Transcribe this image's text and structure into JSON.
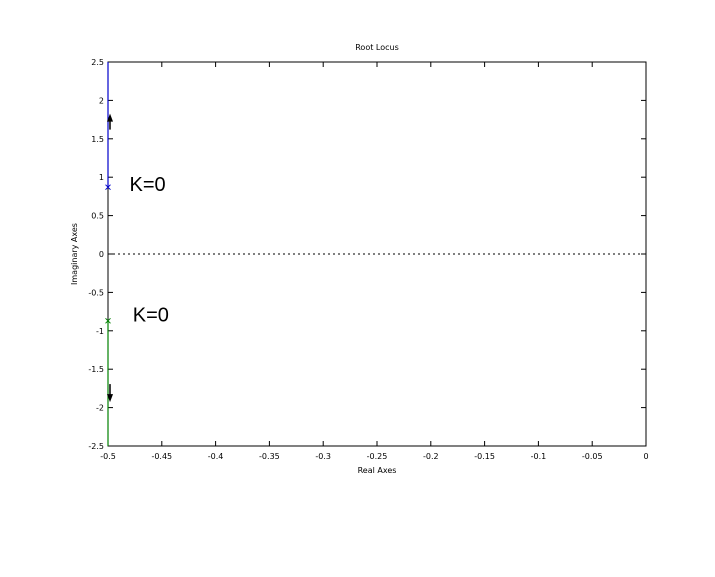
{
  "chart_data": {
    "type": "line",
    "title": "Root Locus",
    "xlabel": "Real Axes",
    "ylabel": "Imaginary Axes",
    "xlim": [
      -0.5,
      0
    ],
    "ylim": [
      -2.5,
      2.5
    ],
    "x_ticks": [
      -0.5,
      -0.45,
      -0.4,
      -0.35,
      -0.3,
      -0.25,
      -0.2,
      -0.15,
      -0.1,
      -0.05,
      0
    ],
    "x_tick_labels": [
      "-0.5",
      "-0.45",
      "-0.4",
      "-0.35",
      "-0.3",
      "-0.25",
      "-0.2",
      "-0.15",
      "-0.1",
      "-0.05",
      "0"
    ],
    "y_ticks": [
      2.5,
      2,
      1.5,
      1,
      0.5,
      0,
      -0.5,
      -1,
      -1.5,
      -2,
      -2.5
    ],
    "y_tick_labels": [
      "2.5",
      "2",
      "1.5",
      "1",
      "0.5",
      "0",
      "-0.5",
      "-1",
      "-1.5",
      "-2",
      "-2.5"
    ],
    "grid": false,
    "series": [
      {
        "color": "#0000cc",
        "x": [
          -0.5,
          -0.5
        ],
        "y": [
          0.87,
          2.5
        ],
        "pole": {
          "x": -0.5,
          "y": 0.87
        },
        "arrow_y": 1.75,
        "arrow_dir": "up"
      },
      {
        "color": "#008000",
        "x": [
          -0.5,
          -0.5
        ],
        "y": [
          -0.87,
          -2.5
        ],
        "pole": {
          "x": -0.5,
          "y": -0.87
        },
        "arrow_y": -1.85,
        "arrow_dir": "down"
      }
    ],
    "zero_line": {
      "y": 0,
      "style": "dotted"
    },
    "annotations": [
      {
        "text": "K=0",
        "x": -0.48,
        "y": 0.82
      },
      {
        "text": "K=0",
        "x": -0.477,
        "y": -0.88
      }
    ]
  }
}
